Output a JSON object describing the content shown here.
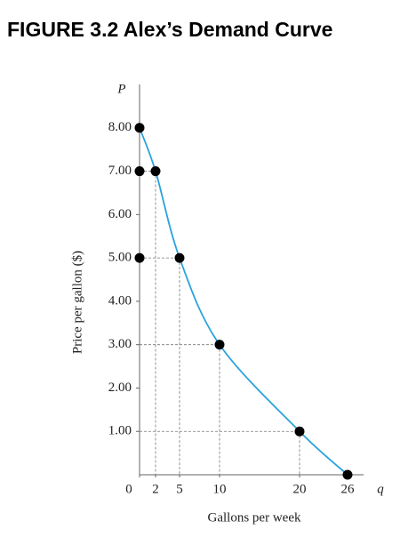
{
  "chart_data": {
    "type": "line",
    "title": "FIGURE 3.2  Alex’s Demand Curve",
    "x_label": "Gallons per week",
    "y_label": "Price per gallon ($)",
    "x_symbol": "q",
    "y_symbol": "P",
    "xlim": [
      0,
      28
    ],
    "ylim": [
      0,
      9
    ],
    "xticks": [
      0,
      2,
      5,
      10,
      20,
      26
    ],
    "yticks": [
      {
        "value": 1,
        "label": "1.00"
      },
      {
        "value": 2,
        "label": "2.00"
      },
      {
        "value": 3,
        "label": "3.00"
      },
      {
        "value": 4,
        "label": "4.00"
      },
      {
        "value": 5,
        "label": "5.00"
      },
      {
        "value": 6,
        "label": "6.00"
      },
      {
        "value": 7,
        "label": "7.00"
      },
      {
        "value": 8,
        "label": "8.00"
      }
    ],
    "series": [
      {
        "type": "line",
        "color": "#29a3dd",
        "x": [
          0,
          2,
          5,
          10,
          20,
          26
        ],
        "values": [
          8,
          7,
          5,
          3,
          1,
          0
        ]
      },
      {
        "type": "scatter",
        "color": "#000000",
        "guides": true,
        "x": [
          0,
          0,
          2,
          0,
          5,
          10,
          20,
          26
        ],
        "values": [
          8,
          7,
          7,
          5,
          5,
          3,
          1,
          0
        ]
      }
    ]
  }
}
